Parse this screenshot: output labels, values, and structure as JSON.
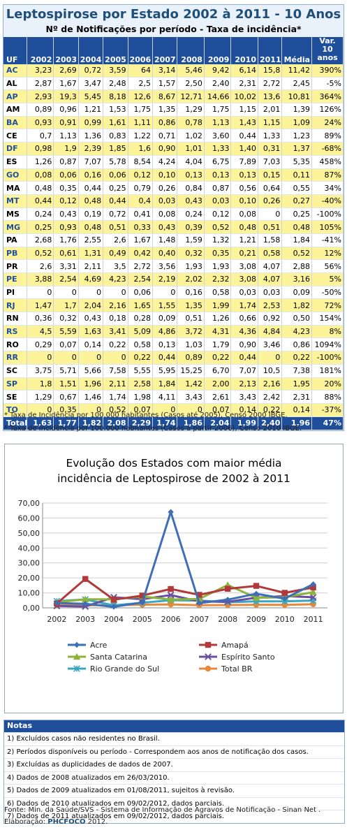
{
  "table": {
    "title": "Leptospirose por Estado 2002 à 2011 - 10 Anos",
    "subtitle": "Nº de Notificações por período - Taxa de incidência*",
    "headers": [
      "UF",
      "2002",
      "2003",
      "2004",
      "2005",
      "2006",
      "2007",
      "2008",
      "2009",
      "2010",
      "2011",
      "Média",
      "Var. 10 anos"
    ],
    "rows": [
      [
        "AC",
        "3,23",
        "2,69",
        "0,72",
        "3,59",
        "64",
        "3,14",
        "5,46",
        "9,42",
        "6,14",
        "15,8",
        "11,42",
        "390%"
      ],
      [
        "AL",
        "2,87",
        "1,67",
        "3,47",
        "2,48",
        "2,5",
        "1,57",
        "2,50",
        "2,40",
        "2,31",
        "2,72",
        "2,45",
        "-5%"
      ],
      [
        "AP",
        "2,93",
        "19,3",
        "5,45",
        "8,18",
        "12,6",
        "8,67",
        "12,71",
        "14,66",
        "10,02",
        "13,6",
        "10,81",
        "364%"
      ],
      [
        "AM",
        "0,89",
        "0,96",
        "1,21",
        "1,53",
        "1,75",
        "1,35",
        "1,29",
        "1,75",
        "1,15",
        "2,01",
        "1,39",
        "126%"
      ],
      [
        "BA",
        "0,93",
        "0,91",
        "0,99",
        "1,61",
        "1,11",
        "0,86",
        "0,78",
        "1,13",
        "1,43",
        "1,15",
        "1,09",
        "24%"
      ],
      [
        "CE",
        "0,7",
        "1,13",
        "1,36",
        "0,83",
        "1,22",
        "0,71",
        "1,02",
        "3,60",
        "0,44",
        "1,33",
        "1,23",
        "89%"
      ],
      [
        "DF",
        "0,98",
        "1,9",
        "2,39",
        "1,85",
        "1,6",
        "0,90",
        "1,01",
        "1,33",
        "1,40",
        "0,31",
        "1,37",
        "-68%"
      ],
      [
        "ES",
        "1,26",
        "0,87",
        "7,07",
        "5,78",
        "8,54",
        "4,24",
        "4,04",
        "6,75",
        "7,89",
        "7,03",
        "5,35",
        "458%"
      ],
      [
        "GO",
        "0,08",
        "0,06",
        "0,16",
        "0,06",
        "0,12",
        "0,10",
        "0,13",
        "0,13",
        "0,13",
        "0,15",
        "0,11",
        "87%"
      ],
      [
        "MA",
        "0,48",
        "0,35",
        "0,44",
        "0,25",
        "0,79",
        "0,26",
        "0,84",
        "0,87",
        "0,56",
        "0,64",
        "0,55",
        "34%"
      ],
      [
        "MT",
        "0,44",
        "0,12",
        "0,48",
        "0,44",
        "0,4",
        "0,03",
        "0,43",
        "0,03",
        "0,10",
        "0,26",
        "0,27",
        "-40%"
      ],
      [
        "MS",
        "0,24",
        "0,43",
        "0,19",
        "0,72",
        "0,41",
        "0,08",
        "0,24",
        "0,12",
        "0,08",
        "0",
        "0,25",
        "-100%"
      ],
      [
        "MG",
        "0,25",
        "0,93",
        "0,48",
        "0,51",
        "0,33",
        "0,43",
        "0,39",
        "0,52",
        "0,48",
        "0,51",
        "0,48",
        "105%"
      ],
      [
        "PA",
        "2,68",
        "1,76",
        "2,55",
        "2,6",
        "1,67",
        "1,48",
        "1,59",
        "1,32",
        "1,21",
        "1,58",
        "1,84",
        "-41%"
      ],
      [
        "PB",
        "0,52",
        "0,61",
        "1,31",
        "0,49",
        "0,42",
        "0,40",
        "0,32",
        "0,35",
        "0,21",
        "0,58",
        "0,52",
        "12%"
      ],
      [
        "PR",
        "2,6",
        "3,31",
        "2,11",
        "3,5",
        "2,72",
        "3,56",
        "1,93",
        "1,93",
        "3,08",
        "4,07",
        "2,88",
        "56%"
      ],
      [
        "PE",
        "3,88",
        "2,54",
        "4,69",
        "4,23",
        "2,54",
        "2,19",
        "2,02",
        "2,32",
        "3,08",
        "4,07",
        "3,16",
        "5%"
      ],
      [
        "PI",
        "0",
        "0",
        "0",
        "0",
        "0,06",
        "0",
        "0,16",
        "0,58",
        "0,03",
        "0,03",
        "0,09",
        "-50%"
      ],
      [
        "RJ",
        "1,47",
        "1,7",
        "2,04",
        "2,16",
        "1,65",
        "1,55",
        "1,35",
        "1,99",
        "1,74",
        "2,53",
        "1,82",
        "72%"
      ],
      [
        "RN",
        "0,36",
        "0,32",
        "0,43",
        "0,18",
        "0,28",
        "0,09",
        "0,51",
        "1,26",
        "0,66",
        "0,92",
        "0,50",
        "154%"
      ],
      [
        "RS",
        "4,5",
        "5,59",
        "1,63",
        "3,41",
        "5,09",
        "4,86",
        "3,72",
        "4,31",
        "4,36",
        "4,84",
        "4,23",
        "8%"
      ],
      [
        "RO",
        "0,29",
        "0,07",
        "0,14",
        "0,22",
        "0,58",
        "0,13",
        "1,03",
        "1,79",
        "0,90",
        "3,46",
        "0,86",
        "1094%"
      ],
      [
        "RR",
        "0",
        "0",
        "0",
        "0",
        "0,22",
        "0,44",
        "0,89",
        "0,22",
        "0,44",
        "0",
        "0,22",
        "-100%"
      ],
      [
        "SC",
        "3,75",
        "5,71",
        "5,66",
        "7,58",
        "5,55",
        "5,95",
        "15,25",
        "6,70",
        "7,07",
        "10,5",
        "7,38",
        "181%"
      ],
      [
        "SP",
        "1,8",
        "1,51",
        "1,96",
        "2,11",
        "2,58",
        "1,84",
        "1,42",
        "2,00",
        "2,13",
        "2,16",
        "1,95",
        "20%"
      ],
      [
        "SE",
        "1,29",
        "0,67",
        "1,46",
        "1,74",
        "1,98",
        "4,11",
        "3,43",
        "2,61",
        "3,43",
        "2,42",
        "2,31",
        "88%"
      ],
      [
        "TO",
        "0",
        "0,35",
        "0",
        "0,52",
        "0,07",
        "0",
        "0",
        "0,07",
        "0,14",
        "0,22",
        "0,14",
        "-37%"
      ]
    ],
    "total": [
      "Total",
      "1,63",
      "1,77",
      "1,82",
      "2,08",
      "2,29",
      "1,74",
      "1,86",
      "2,04",
      "1,99",
      "2,40",
      "1,96",
      "47%"
    ]
  },
  "footnotes": [
    "* Taxa de Incidência por 100.000 habitantes (Casos até 2005), Censo 2000 IBGE.",
    "* Taxa de Incidência por 100.000 habitantes (Casos a partir 2006), Censo 2010 IBGE."
  ],
  "chart_data": {
    "type": "line",
    "title": "Evolução dos Estados com maior média incidência de Leptospirose de 2002 à 2011",
    "title_lines": [
      "Evolução dos Estados com maior média",
      "incidência de Leptospirose de 2002 à 2011"
    ],
    "x": [
      "2002",
      "2003",
      "2004",
      "2005",
      "2006",
      "2007",
      "2008",
      "2009",
      "2010",
      "2011"
    ],
    "ylim": [
      0,
      70
    ],
    "yticks": [
      "0,00",
      "10,00",
      "20,00",
      "30,00",
      "40,00",
      "50,00",
      "60,00",
      "70,00"
    ],
    "grid": true,
    "legend_position": "bottom",
    "series": [
      {
        "name": "Acre",
        "color": "#3d6fb6",
        "marker": "diamond",
        "values": [
          3.23,
          2.69,
          0.72,
          3.59,
          64,
          3.14,
          5.46,
          9.42,
          6.14,
          15.8
        ]
      },
      {
        "name": "Amapá",
        "color": "#b0393b",
        "marker": "square",
        "values": [
          2.93,
          19.3,
          5.45,
          8.18,
          12.6,
          8.67,
          12.71,
          14.66,
          10.02,
          13.6
        ]
      },
      {
        "name": "Santa Catarina",
        "color": "#8db33a",
        "marker": "triangle",
        "values": [
          3.75,
          5.71,
          5.66,
          7.58,
          5.55,
          5.95,
          15.25,
          6.7,
          7.07,
          10.5
        ]
      },
      {
        "name": "Espírito Santo",
        "color": "#6a4fa0",
        "marker": "x",
        "values": [
          1.26,
          0.87,
          7.07,
          5.78,
          8.54,
          4.24,
          4.04,
          6.75,
          7.89,
          7.03
        ]
      },
      {
        "name": "Rio Grande do Sul",
        "color": "#3aa6c0",
        "marker": "star",
        "values": [
          4.5,
          5.59,
          1.63,
          3.41,
          5.09,
          4.86,
          3.72,
          4.31,
          4.36,
          4.84
        ]
      },
      {
        "name": "Total BR",
        "color": "#e8893a",
        "marker": "circle",
        "values": [
          1.63,
          1.77,
          1.82,
          2.08,
          2.29,
          1.74,
          1.86,
          2.04,
          1.99,
          2.4
        ]
      }
    ]
  },
  "notes": {
    "heading": "Notas",
    "items": [
      "1) Excluídos casos não residentes no Brasil.",
      "2) Períodos disponíveis ou período - Correspondem aos anos de notificação dos casos.",
      "3) Excluídas as duplicidades de dados de 2007.",
      "4) Dados de 2008 atualizados em 26/03/2010.",
      "5) Dados de 2009 atualizados em 01/08/2011, sujeitos à revisão.",
      "6) Dados de 2010 atualizados em 09/02/2012, dados parciais.",
      "7) Dados de 2011 atualizados em 09/02/2012, dados parciais."
    ]
  },
  "source": {
    "line1": "Fonte: Min. da Saúde/SVS - Sistema de Informação de Agravos de Notificação - Sinan Net .",
    "label2": "Elaboração: ",
    "brand_phc": "PHC",
    "brand_foco": "FOCO",
    "year": " 2012."
  }
}
